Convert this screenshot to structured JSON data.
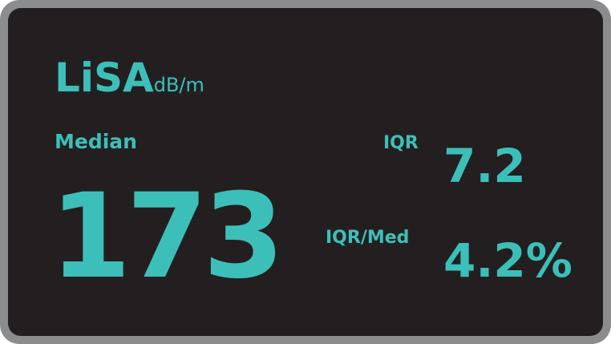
{
  "display": {
    "title": "LiSA",
    "unit": "dB/m",
    "median_label": "Median",
    "median_value": "173",
    "iqr_label": "IQR",
    "iqr_value": "7.2",
    "ratio_label": "IQR/Med",
    "ratio_value": "4.2%"
  },
  "colors": {
    "accent": "#3dbfb9",
    "panel": "#231f20",
    "frame": "#8b8c8e"
  }
}
